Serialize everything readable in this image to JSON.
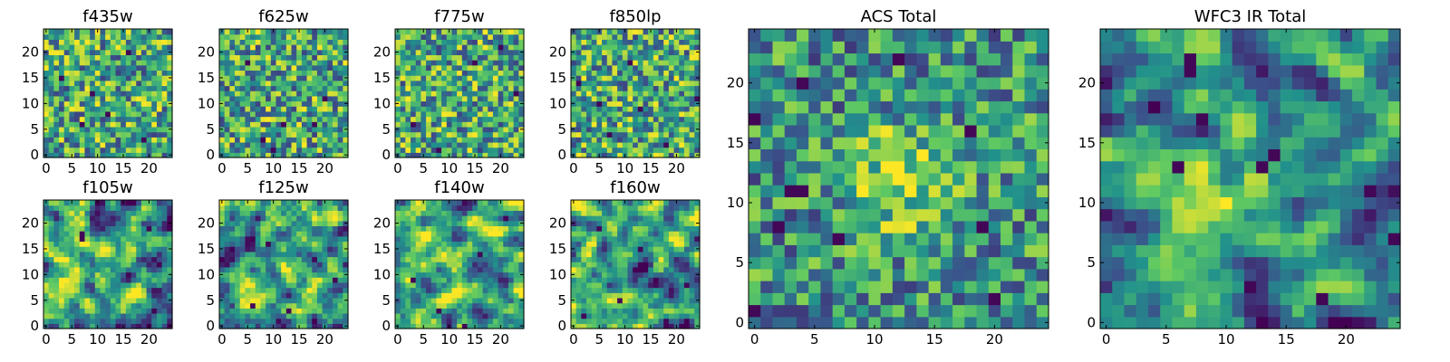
{
  "colormap": [
    "#440154",
    "#3b528b",
    "#21918c",
    "#5ec962",
    "#fde725"
  ],
  "chart_data": [
    {
      "type": "heatmap",
      "title": "f435w",
      "grid": [
        25,
        25
      ],
      "xticks": [
        "0",
        "5",
        "10",
        "15",
        "20"
      ],
      "yticks": [
        "0",
        "5",
        "10",
        "15",
        "20"
      ],
      "seed": 11,
      "texture": "noise",
      "dark_spots": [
        [
          7,
          6
        ],
        [
          12,
          8
        ],
        [
          3,
          15
        ],
        [
          19,
          3
        ],
        [
          16,
          20
        ],
        [
          9,
          12
        ]
      ]
    },
    {
      "type": "heatmap",
      "title": "f625w",
      "grid": [
        25,
        25
      ],
      "xticks": [
        "0",
        "5",
        "10",
        "15",
        "20"
      ],
      "yticks": [
        "0",
        "5",
        "10",
        "15",
        "20"
      ],
      "seed": 23,
      "texture": "noise",
      "dark_spots": [
        [
          8,
          3
        ],
        [
          10,
          1
        ],
        [
          12,
          6
        ],
        [
          18,
          6
        ],
        [
          5,
          18
        ],
        [
          20,
          11
        ]
      ]
    },
    {
      "type": "heatmap",
      "title": "f775w",
      "grid": [
        25,
        25
      ],
      "xticks": [
        "0",
        "5",
        "10",
        "15",
        "20"
      ],
      "yticks": [
        "0",
        "5",
        "10",
        "15",
        "20"
      ],
      "seed": 37,
      "texture": "noise",
      "dark_spots": [
        [
          23,
          12
        ],
        [
          8,
          1
        ],
        [
          3,
          6
        ],
        [
          20,
          21
        ],
        [
          15,
          18
        ]
      ]
    },
    {
      "type": "heatmap",
      "title": "f850lp",
      "grid": [
        25,
        25
      ],
      "xticks": [
        "0",
        "5",
        "10",
        "15",
        "20"
      ],
      "yticks": [
        "0",
        "5",
        "10",
        "15",
        "20"
      ],
      "seed": 41,
      "texture": "noise",
      "dark_spots": [
        [
          1,
          14
        ],
        [
          24,
          11
        ],
        [
          7,
          4
        ],
        [
          13,
          9
        ],
        [
          18,
          2
        ],
        [
          11,
          18
        ],
        [
          5,
          10
        ]
      ]
    },
    {
      "type": "heatmap",
      "title": "f105w",
      "grid": [
        25,
        25
      ],
      "xticks": [
        "0",
        "5",
        "10",
        "15",
        "20"
      ],
      "yticks": [
        "0",
        "5",
        "10",
        "15",
        "20"
      ],
      "seed": 53,
      "texture": "smooth",
      "dark_spots": [
        [
          7,
          17
        ],
        [
          7,
          18
        ],
        [
          16,
          10
        ],
        [
          21,
          3
        ],
        [
          20,
          19
        ]
      ]
    },
    {
      "type": "heatmap",
      "title": "f125w",
      "grid": [
        25,
        25
      ],
      "xticks": [
        "0",
        "5",
        "10",
        "15",
        "20"
      ],
      "yticks": [
        "0",
        "5",
        "10",
        "15",
        "20"
      ],
      "seed": 67,
      "texture": "smooth",
      "dark_spots": [
        [
          22,
          9
        ],
        [
          6,
          4
        ],
        [
          13,
          3
        ],
        [
          9,
          16
        ],
        [
          18,
          13
        ]
      ]
    },
    {
      "type": "heatmap",
      "title": "f140w",
      "grid": [
        25,
        25
      ],
      "xticks": [
        "0",
        "5",
        "10",
        "15",
        "20"
      ],
      "yticks": [
        "0",
        "5",
        "10",
        "15",
        "20"
      ],
      "seed": 71,
      "texture": "smooth",
      "dark_spots": [
        [
          13,
          0
        ],
        [
          8,
          3
        ],
        [
          21,
          21
        ],
        [
          16,
          14
        ],
        [
          3,
          9
        ]
      ]
    },
    {
      "type": "heatmap",
      "title": "f160w",
      "grid": [
        25,
        25
      ],
      "xticks": [
        "0",
        "5",
        "10",
        "15",
        "20"
      ],
      "yticks": [
        "0",
        "5",
        "10",
        "15",
        "20"
      ],
      "seed": 83,
      "texture": "smooth",
      "dark_spots": [
        [
          18,
          1
        ],
        [
          22,
          8
        ],
        [
          5,
          19
        ],
        [
          13,
          15
        ],
        [
          9,
          5
        ],
        [
          2,
          2
        ]
      ]
    },
    {
      "type": "heatmap",
      "title": "ACS Total",
      "grid": [
        25,
        25
      ],
      "xticks": [
        "0",
        "5",
        "10",
        "15",
        "20"
      ],
      "yticks": [
        "0",
        "5",
        "10",
        "15",
        "20"
      ],
      "seed": 97,
      "texture": "noise",
      "hotspot": [
        12,
        12
      ],
      "dark_spots": [
        [
          4,
          11
        ],
        [
          3,
          11
        ],
        [
          7,
          7
        ],
        [
          2,
          8
        ],
        [
          0,
          17
        ],
        [
          4,
          20
        ],
        [
          19,
          8
        ],
        [
          20,
          2
        ],
        [
          0,
          1
        ],
        [
          12,
          22
        ],
        [
          18,
          16
        ]
      ]
    },
    {
      "type": "heatmap",
      "title": "WFC3 IR Total",
      "grid": [
        25,
        25
      ],
      "xticks": [
        "0",
        "5",
        "10",
        "15",
        "20"
      ],
      "yticks": [
        "0",
        "5",
        "10",
        "15",
        "20"
      ],
      "seed": 101,
      "texture": "smooth",
      "hotspot": [
        12,
        11
      ],
      "dark_spots": [
        [
          7,
          22
        ],
        [
          7,
          21
        ],
        [
          8,
          17
        ],
        [
          14,
          14
        ],
        [
          13,
          13
        ],
        [
          22,
          11
        ],
        [
          24,
          7
        ],
        [
          12,
          3
        ],
        [
          18,
          2
        ],
        [
          6,
          13
        ]
      ]
    }
  ]
}
